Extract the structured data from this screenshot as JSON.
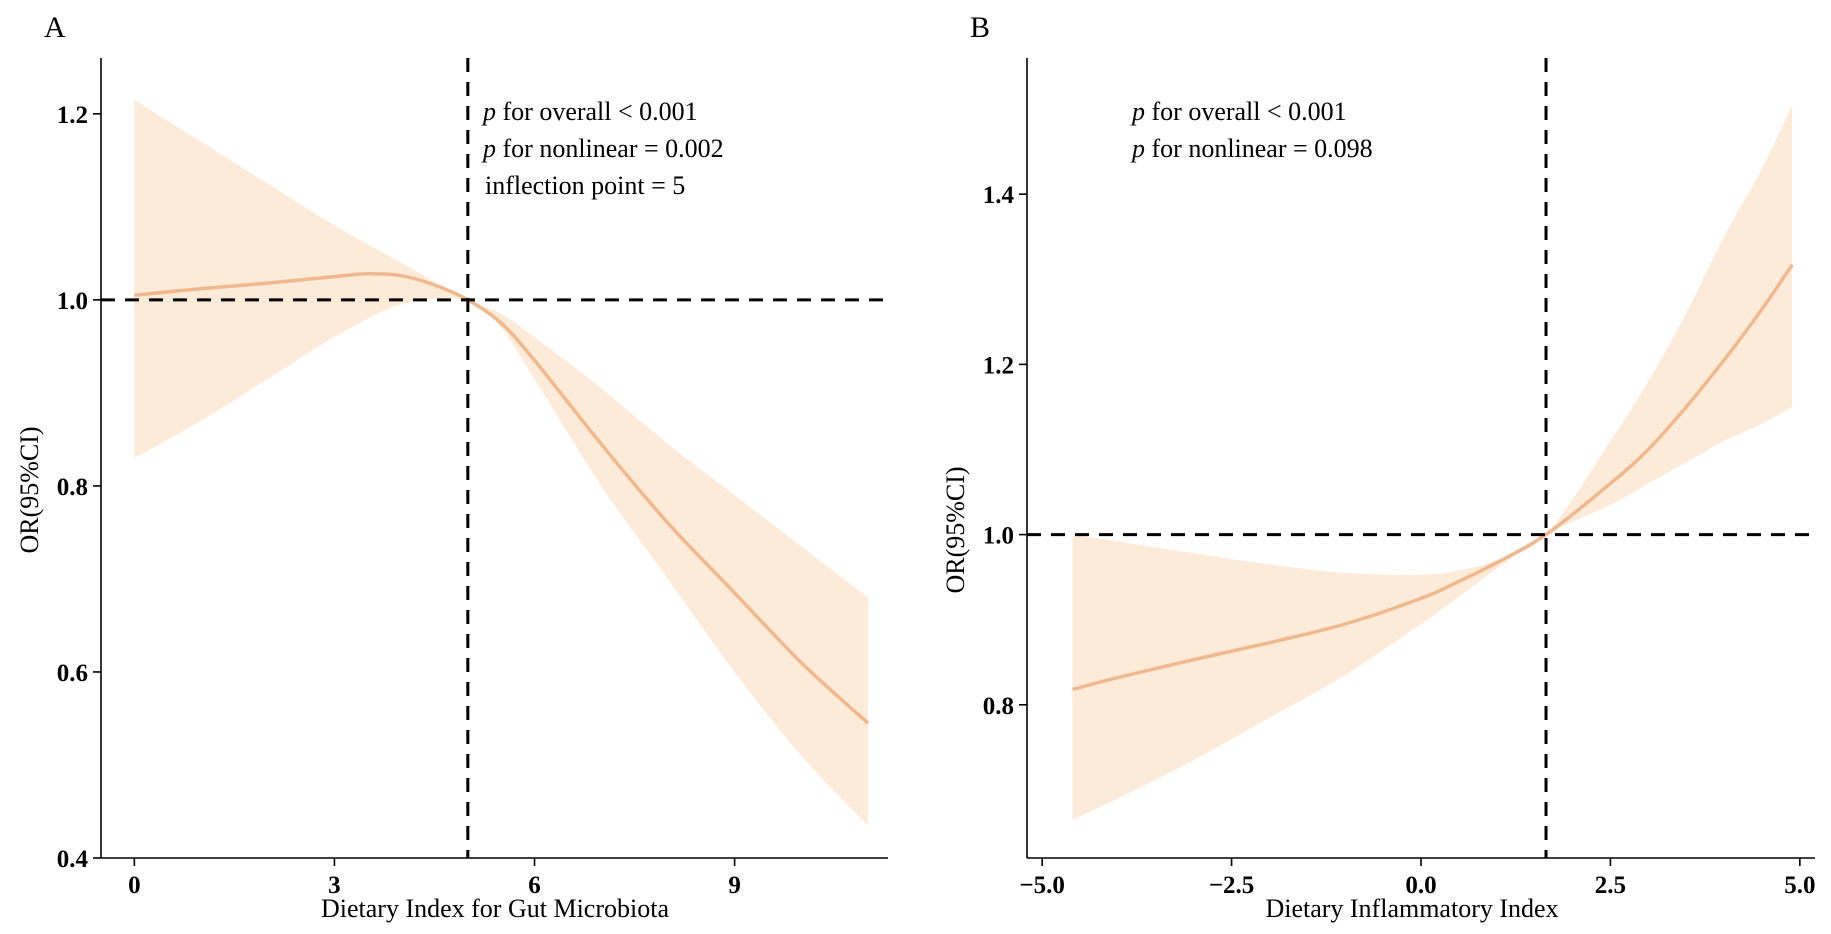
{
  "figure": {
    "panels": [
      "A",
      "B"
    ]
  },
  "chart_data": [
    {
      "type": "line",
      "panel_label": "A",
      "xlabel": "Dietary Index for Gut Microbiota",
      "ylabel": "OR(95%CI)",
      "xlim": [
        -0.5,
        11.3
      ],
      "ylim": [
        0.4,
        1.26
      ],
      "xticks": [
        0,
        3,
        6,
        9
      ],
      "xtick_labels": [
        "0",
        "3",
        "6",
        "9"
      ],
      "yticks": [
        0.4,
        0.6,
        0.8,
        1.0,
        1.2
      ],
      "ytick_labels": [
        "0.4",
        "0.6",
        "0.8",
        "1.0",
        "1.2"
      ],
      "reference_y": 1.0,
      "reference_x": 5,
      "series": [
        {
          "name": "OR",
          "color": "#f0b88c",
          "x": [
            0,
            1,
            2,
            3,
            3.5,
            4,
            4.5,
            5,
            5.5,
            6,
            7,
            8,
            9,
            10,
            11
          ],
          "y": [
            1.005,
            1.012,
            1.018,
            1.025,
            1.028,
            1.026,
            1.016,
            1.0,
            0.975,
            0.935,
            0.845,
            0.76,
            0.685,
            0.61,
            0.545
          ]
        }
      ],
      "ci_band": {
        "color": "#fdebd9",
        "x": [
          0,
          1,
          2,
          3,
          4,
          5,
          5.5,
          6,
          7,
          8,
          9,
          10,
          11
        ],
        "upper": [
          1.215,
          1.17,
          1.125,
          1.08,
          1.04,
          1.0,
          0.985,
          0.96,
          0.905,
          0.845,
          0.79,
          0.735,
          0.68
        ],
        "lower": [
          0.83,
          0.87,
          0.915,
          0.96,
          0.995,
          1.0,
          0.97,
          0.915,
          0.8,
          0.7,
          0.6,
          0.51,
          0.435
        ]
      },
      "annotations": [
        {
          "italic": "p",
          "text": " for overall < 0.001"
        },
        {
          "italic": "p",
          "text": " for nonlinear = 0.002"
        },
        {
          "italic": "",
          "text": "inflection point = 5"
        }
      ]
    },
    {
      "type": "line",
      "panel_label": "B",
      "xlabel": "Dietary Inflammatory Index",
      "ylabel": "OR(95%CI)",
      "xlim": [
        -5.2,
        5.2
      ],
      "ylim": [
        0.62,
        1.56
      ],
      "xticks": [
        -5.0,
        -2.5,
        0.0,
        2.5,
        5.0
      ],
      "xtick_labels": [
        "−5.0",
        "−2.5",
        "0.0",
        "2.5",
        "5.0"
      ],
      "yticks": [
        0.8,
        1.0,
        1.2,
        1.4
      ],
      "ytick_labels": [
        "0.8",
        "1.0",
        "1.2",
        "1.4"
      ],
      "reference_y": 1.0,
      "reference_x": 1.65,
      "series": [
        {
          "name": "OR",
          "color": "#f0b88c",
          "x": [
            -4.6,
            -4,
            -3,
            -2,
            -1,
            0,
            0.5,
            1.0,
            1.65,
            2.5,
            3,
            3.5,
            4,
            4.5,
            4.9
          ],
          "y": [
            0.818,
            0.832,
            0.853,
            0.873,
            0.895,
            0.925,
            0.945,
            0.967,
            1.0,
            1.06,
            1.1,
            1.15,
            1.205,
            1.265,
            1.317
          ]
        }
      ],
      "ci_band": {
        "color": "#fdebd9",
        "x": [
          -4.6,
          -4,
          -3,
          -2,
          -1,
          0,
          0.5,
          1.0,
          1.65,
          2.5,
          3,
          3.5,
          4,
          4.5,
          4.9
        ],
        "upper": [
          1.0,
          0.992,
          0.978,
          0.965,
          0.955,
          0.953,
          0.958,
          0.97,
          1.0,
          1.11,
          1.18,
          1.26,
          1.35,
          1.43,
          1.505
        ],
        "lower": [
          0.665,
          0.69,
          0.735,
          0.785,
          0.835,
          0.895,
          0.927,
          0.96,
          1.0,
          1.035,
          1.06,
          1.085,
          1.11,
          1.13,
          1.15
        ]
      },
      "annotations": [
        {
          "italic": "p",
          "text": " for overall < 0.001"
        },
        {
          "italic": "p",
          "text": " for nonlinear = 0.098"
        }
      ]
    }
  ]
}
